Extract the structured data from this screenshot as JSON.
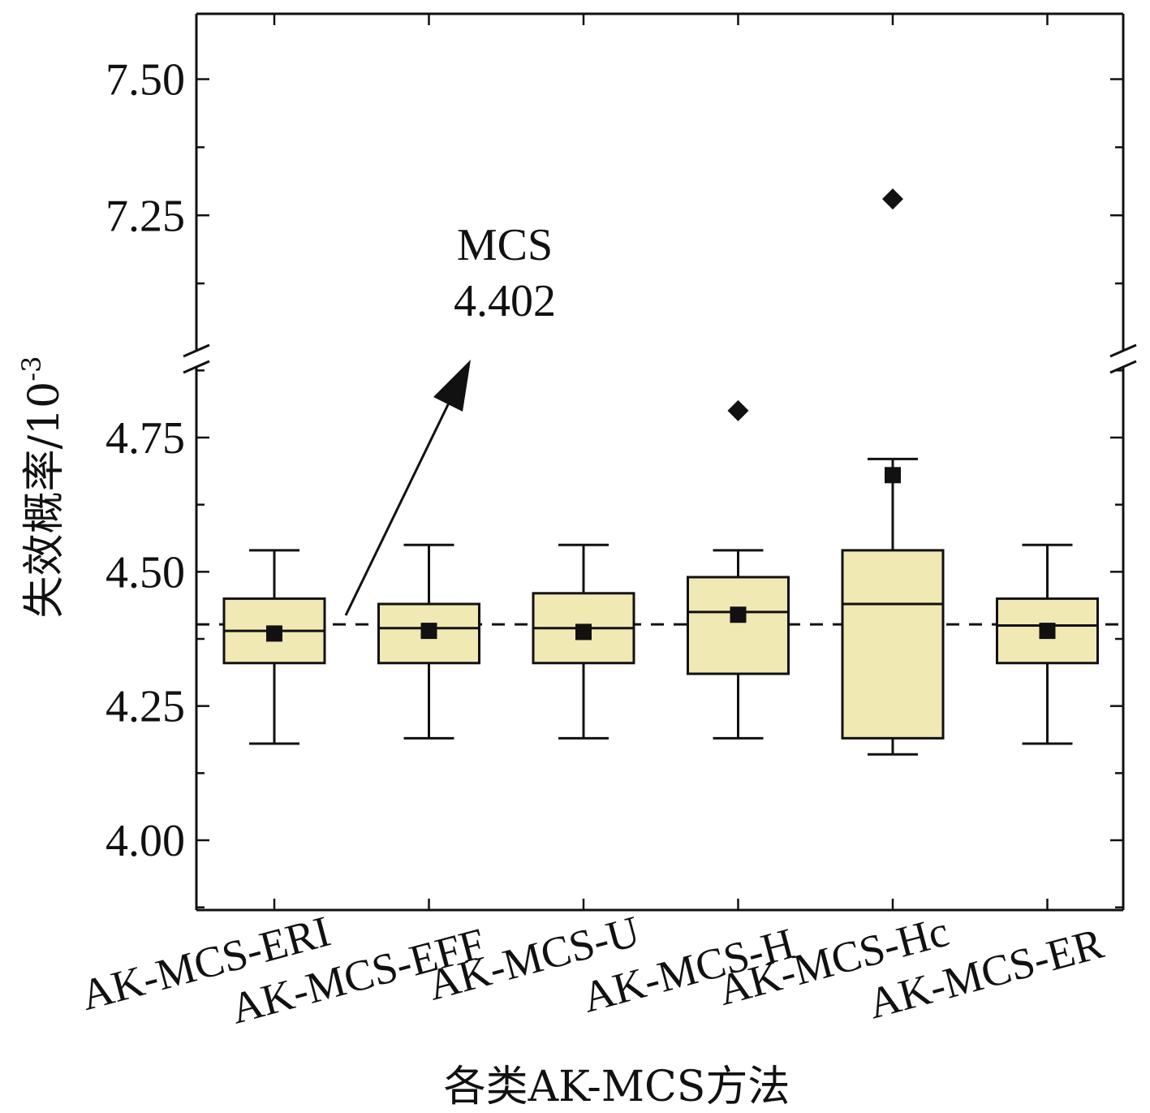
{
  "chart_data": {
    "type": "box",
    "xlabel": "各类AK-MCS方法",
    "ylabel": "失效概率/10",
    "ylabel_exponent": "-3",
    "y_segments": [
      {
        "range": [
          3.87,
          4.88
        ],
        "ticks": [
          "4.00",
          "4.25",
          "4.50",
          "4.75"
        ],
        "tick_values": [
          4.0,
          4.25,
          4.5,
          4.75
        ]
      },
      {
        "range": [
          7.0,
          7.62
        ],
        "ticks": [
          "7.25",
          "7.50"
        ],
        "tick_values": [
          7.25,
          7.5
        ]
      }
    ],
    "axis_break": true,
    "reference": {
      "value": 4.402,
      "style": "dashed",
      "label_line1": "MCS",
      "label_line2": "4.402"
    },
    "box_fill": "#f1e9b3",
    "categories": [
      "AK-MCS-ERI",
      "AK-MCS-EFF",
      "AK-MCS-U",
      "AK-MCS-H",
      "AK-MCS-Hc",
      "AK-MCS-ER"
    ],
    "boxes": [
      {
        "name": "AK-MCS-ERI",
        "min": 4.18,
        "q1": 4.33,
        "median": 4.39,
        "q3": 4.45,
        "max": 4.54,
        "mean": 4.385,
        "outliers": []
      },
      {
        "name": "AK-MCS-EFF",
        "min": 4.19,
        "q1": 4.33,
        "median": 4.395,
        "q3": 4.44,
        "max": 4.55,
        "mean": 4.39,
        "outliers": []
      },
      {
        "name": "AK-MCS-U",
        "min": 4.19,
        "q1": 4.33,
        "median": 4.395,
        "q3": 4.46,
        "max": 4.55,
        "mean": 4.388,
        "outliers": []
      },
      {
        "name": "AK-MCS-H",
        "min": 4.19,
        "q1": 4.31,
        "median": 4.425,
        "q3": 4.49,
        "max": 4.54,
        "mean": 4.42,
        "outliers": [
          4.8
        ]
      },
      {
        "name": "AK-MCS-Hc",
        "min": 4.16,
        "q1": 4.19,
        "median": 4.44,
        "q3": 4.54,
        "max": 4.71,
        "mean": 4.68,
        "outliers": [
          7.28
        ]
      },
      {
        "name": "AK-MCS-ER",
        "min": 4.18,
        "q1": 4.33,
        "median": 4.4,
        "q3": 4.45,
        "max": 4.55,
        "mean": 4.39,
        "outliers": []
      }
    ]
  }
}
